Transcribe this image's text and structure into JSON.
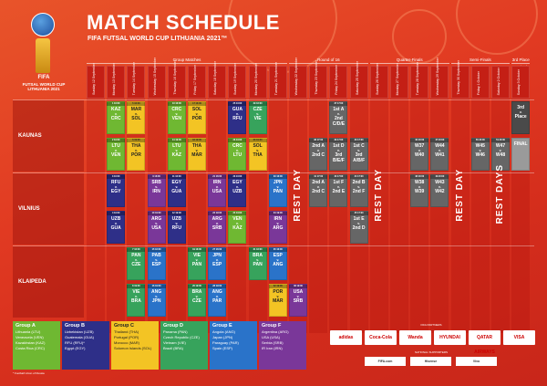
{
  "title": "MATCH SCHEDULE",
  "subtitle": "FIFA FUTSAL WORLD CUP LITHUANIA 2021™",
  "logo": {
    "fifa": "FIFA",
    "name": "FUTSAL WORLD CUP LITHUANIA 2021"
  },
  "stages": [
    "Group Matches",
    "Round of 16",
    "Quarter-Finals",
    "Semi-Finals",
    "3rd Place & Final"
  ],
  "days": [
    "Sunday 12 September",
    "Monday 13 September",
    "Tuesday 14 September",
    "Wednesday 15 September",
    "Thursday 16 September",
    "Friday 17 September",
    "Saturday 18 September",
    "Sunday 19 September",
    "Monday 20 September",
    "Tuesday 21 September",
    "Wednesday 22 September",
    "Thursday 23 September",
    "Friday 24 September",
    "Saturday 25 September",
    "Sunday 26 September",
    "Monday 27 September",
    "Tuesday 28 September",
    "Wednesday 29 September",
    "Thursday 30 September",
    "Friday 1 October",
    "Saturday 2 October",
    "Sunday 3 October"
  ],
  "venues": [
    "KAUNAS",
    "VILNIUS",
    "KLAIPEDA"
  ],
  "rest_days": [
    "REST DAY",
    "REST DAY",
    "REST DAY",
    "REST DAYS"
  ],
  "matches": [
    {
      "h": "1 16:00",
      "a": "KAZ",
      "b": "CRC",
      "g": "gA",
      "c": 1,
      "r": 0
    },
    {
      "h": "2 19:00",
      "a": "LTU",
      "b": "VEN",
      "g": "gA",
      "c": 1,
      "r": 1
    },
    {
      "h": "5 16:00",
      "a": "MAR",
      "b": "SOL",
      "g": "gC",
      "c": 2,
      "r": 0
    },
    {
      "h": "6 19:00",
      "a": "THA",
      "b": "POR",
      "g": "gC",
      "c": 2,
      "r": 1
    },
    {
      "h": "13 16:00",
      "a": "CRC",
      "b": "VEN",
      "g": "gA",
      "c": 4,
      "r": 0
    },
    {
      "h": "14 19:00",
      "a": "LTU",
      "b": "KAZ",
      "g": "gA",
      "c": 4,
      "r": 1
    },
    {
      "h": "17 16:00",
      "a": "SOL",
      "b": "POR",
      "g": "gC",
      "c": 5,
      "r": 0
    },
    {
      "h": "18 19:00",
      "a": "THA",
      "b": "MAR",
      "g": "gC",
      "c": 5,
      "r": 1
    },
    {
      "h": "25 16:00",
      "a": "GUA",
      "b": "RFU",
      "g": "gB",
      "c": 7,
      "r": 0
    },
    {
      "h": "26 19:00",
      "a": "CRC",
      "b": "LTU",
      "g": "gA",
      "c": 7,
      "r": 1
    },
    {
      "h": "29 16:00",
      "a": "CZE",
      "b": "VIE",
      "g": "gD",
      "c": 8,
      "r": 0
    },
    {
      "h": "30 19:00",
      "a": "SOL",
      "b": "THA",
      "g": "gC",
      "c": 8,
      "r": 1
    },
    {
      "h": "3 16:00",
      "a": "RFU",
      "b": "EGY",
      "g": "gB",
      "c": 1,
      "r": 2
    },
    {
      "h": "4 19:00",
      "a": "UZB",
      "b": "GUA",
      "g": "gB",
      "c": 1,
      "r": 3
    },
    {
      "h": "9 16:00",
      "a": "SRB",
      "b": "IRN",
      "g": "gF",
      "c": 3,
      "r": 2
    },
    {
      "h": "10 19:00",
      "a": "ARG",
      "b": "USA",
      "g": "gF",
      "c": 3,
      "r": 3
    },
    {
      "h": "11 16:00",
      "a": "EGY",
      "b": "GUA",
      "g": "gB",
      "c": 4,
      "r": 2
    },
    {
      "h": "12 19:00",
      "a": "UZB",
      "b": "RFU",
      "g": "gB",
      "c": 4,
      "r": 3
    },
    {
      "h": "21 16:00",
      "a": "IRN",
      "b": "USA",
      "g": "gF",
      "c": 6,
      "r": 2
    },
    {
      "h": "22 19:00",
      "a": "ARG",
      "b": "SRB",
      "g": "gF",
      "c": 6,
      "r": 3
    },
    {
      "h": "23 16:00",
      "a": "EGY",
      "b": "UZB",
      "g": "gB",
      "c": 7,
      "r": 2
    },
    {
      "h": "24 19:00",
      "a": "VEN",
      "b": "KAZ",
      "g": "gA",
      "c": 7,
      "r": 3
    },
    {
      "h": "33 16:00",
      "a": "JPN",
      "b": "PAN",
      "g": "gE",
      "c": 9,
      "r": 2
    },
    {
      "h": "34 19:00",
      "a": "IRN",
      "b": "ARG",
      "g": "gF",
      "c": 9,
      "r": 3
    },
    {
      "h": "7 16:00",
      "a": "PAN",
      "b": "CZE",
      "g": "gD",
      "c": 2,
      "r": 4
    },
    {
      "h": "8 19:00",
      "a": "VIE",
      "b": "BRA",
      "g": "gD",
      "c": 2,
      "r": 5
    },
    {
      "h": "15 16:00",
      "a": "PAB",
      "b": "ESP",
      "g": "gE",
      "c": 3,
      "r": 4
    },
    {
      "h": "16 19:00",
      "a": "ANG",
      "b": "JPN",
      "g": "gE",
      "c": 3,
      "r": 5
    },
    {
      "h": "19 16:00",
      "a": "VIE",
      "b": "PAN",
      "g": "gD",
      "c": 5,
      "r": 4
    },
    {
      "h": "20 19:00",
      "a": "BRA",
      "b": "CZE",
      "g": "gD",
      "c": 5,
      "r": 5
    },
    {
      "h": "27 16:00",
      "a": "JPN",
      "b": "ESP",
      "g": "gE",
      "c": 6,
      "r": 4
    },
    {
      "h": "28 19:00",
      "a": "ANG",
      "b": "PAR",
      "g": "gE",
      "c": 6,
      "r": 5
    },
    {
      "h": "31 16:00",
      "a": "BRA",
      "b": "PAN",
      "g": "gD",
      "c": 8,
      "r": 4
    },
    {
      "h": "32 19:00",
      "a": "POR",
      "b": "MAR",
      "g": "gC",
      "c": 9,
      "r": 5
    },
    {
      "h": "35 16:00",
      "a": "ESP",
      "b": "ANG",
      "g": "gE",
      "c": 9,
      "r": 4
    },
    {
      "h": "36 19:00",
      "a": "USA",
      "b": "SRB",
      "g": "gF",
      "c": 10,
      "r": 5
    }
  ],
  "knockouts": [
    {
      "h": "37 17:00",
      "a": "1st A",
      "b": "2nd C/D/E",
      "c": 12,
      "r": 0
    },
    {
      "h": "38 17:00",
      "a": "2nd A",
      "b": "2nd C",
      "c": 11,
      "r": 1
    },
    {
      "h": "39 17:00",
      "a": "1st D",
      "b": "3rd B/E/F",
      "c": 12,
      "r": 1
    },
    {
      "h": "40 17:00",
      "a": "1st C",
      "b": "3rd A/B/F",
      "c": 13,
      "r": 1
    },
    {
      "h": "41 17:00",
      "a": "2nd A",
      "b": "2nd C",
      "c": 11,
      "r": 2
    },
    {
      "h": "42 17:00",
      "a": "3rd",
      "b": "A/C/D",
      "c": 12,
      "r": 2
    },
    {
      "h": "43 17:00",
      "a": "1st F",
      "b": "2nd E",
      "c": 12,
      "r": 2
    },
    {
      "h": "44 17:00",
      "a": "2nd B",
      "b": "2nd F",
      "c": 13,
      "r": 2
    },
    {
      "h": "45 17:00",
      "a": "1st E",
      "b": "2nd D",
      "c": 13,
      "r": 3
    },
    {
      "h": "46 20:00",
      "a": "W37",
      "b": "W40",
      "c": 16,
      "r": 1
    },
    {
      "h": "47 20:00",
      "a": "W44",
      "b": "W41",
      "c": 17,
      "r": 1
    },
    {
      "h": "48 20:00",
      "a": "W38",
      "b": "W39",
      "c": 16,
      "r": 2
    },
    {
      "h": "49 20:00",
      "a": "W43",
      "b": "W42",
      "c": 17,
      "r": 2
    },
    {
      "h": "50 20:00",
      "a": "W45",
      "b": "W46",
      "c": 19,
      "r": 1
    },
    {
      "h": "51 20:00",
      "a": "W47",
      "b": "W48",
      "c": 20,
      "r": 1
    }
  ],
  "final_cells": [
    {
      "a": "3rd",
      "b": "Place",
      "c": 21,
      "r": 0
    },
    {
      "a": "FINAL",
      "b": "",
      "c": 21,
      "r": 1
    }
  ],
  "groups": [
    {
      "name": "Group A",
      "cls": "gA",
      "teams": [
        "Lithuania (LTU)",
        "Venezuela (VEN)",
        "Kazakhstan (KAZ)",
        "Costa Rica (CRC)"
      ]
    },
    {
      "name": "Group B",
      "cls": "gB",
      "teams": [
        "Uzbekistan (UZB)",
        "Guatemala (GUA)",
        "RFU (RFU)*",
        "Egypt (EGY)"
      ]
    },
    {
      "name": "Group C",
      "cls": "gC",
      "teams": [
        "Thailand (THA)",
        "Portugal (POR)",
        "Morocco (MAR)",
        "Solomon Islands (SOL)"
      ]
    },
    {
      "name": "Group D",
      "cls": "gD",
      "teams": [
        "Panama (PAN)",
        "Czech Republic (CZE)",
        "Vietnam (VIE)",
        "Brazil (BRA)"
      ]
    },
    {
      "name": "Group E",
      "cls": "gE",
      "teams": [
        "Angola (ANG)",
        "Japan (JPN)",
        "Paraguay (PAR)",
        "Spain (ESP)"
      ]
    },
    {
      "name": "Group F",
      "cls": "gF",
      "teams": [
        "Argentina (ARG)",
        "USA (USA)",
        "Serbia (SRB)",
        "IR Iran (IRN)"
      ]
    }
  ],
  "footnote": "* Football Union of Russia",
  "sponsors_title": "FIFA PARTNERS",
  "sponsors": [
    "adidas",
    "Coca-Cola",
    "Wanda",
    "HYUNDAI",
    "QATAR AIRWAYS",
    "VISA"
  ],
  "sponsors2_title": "NATIONAL SUPPORTERS",
  "sponsors2": [
    "FIFA.com",
    "Hisense",
    "Vivo"
  ]
}
